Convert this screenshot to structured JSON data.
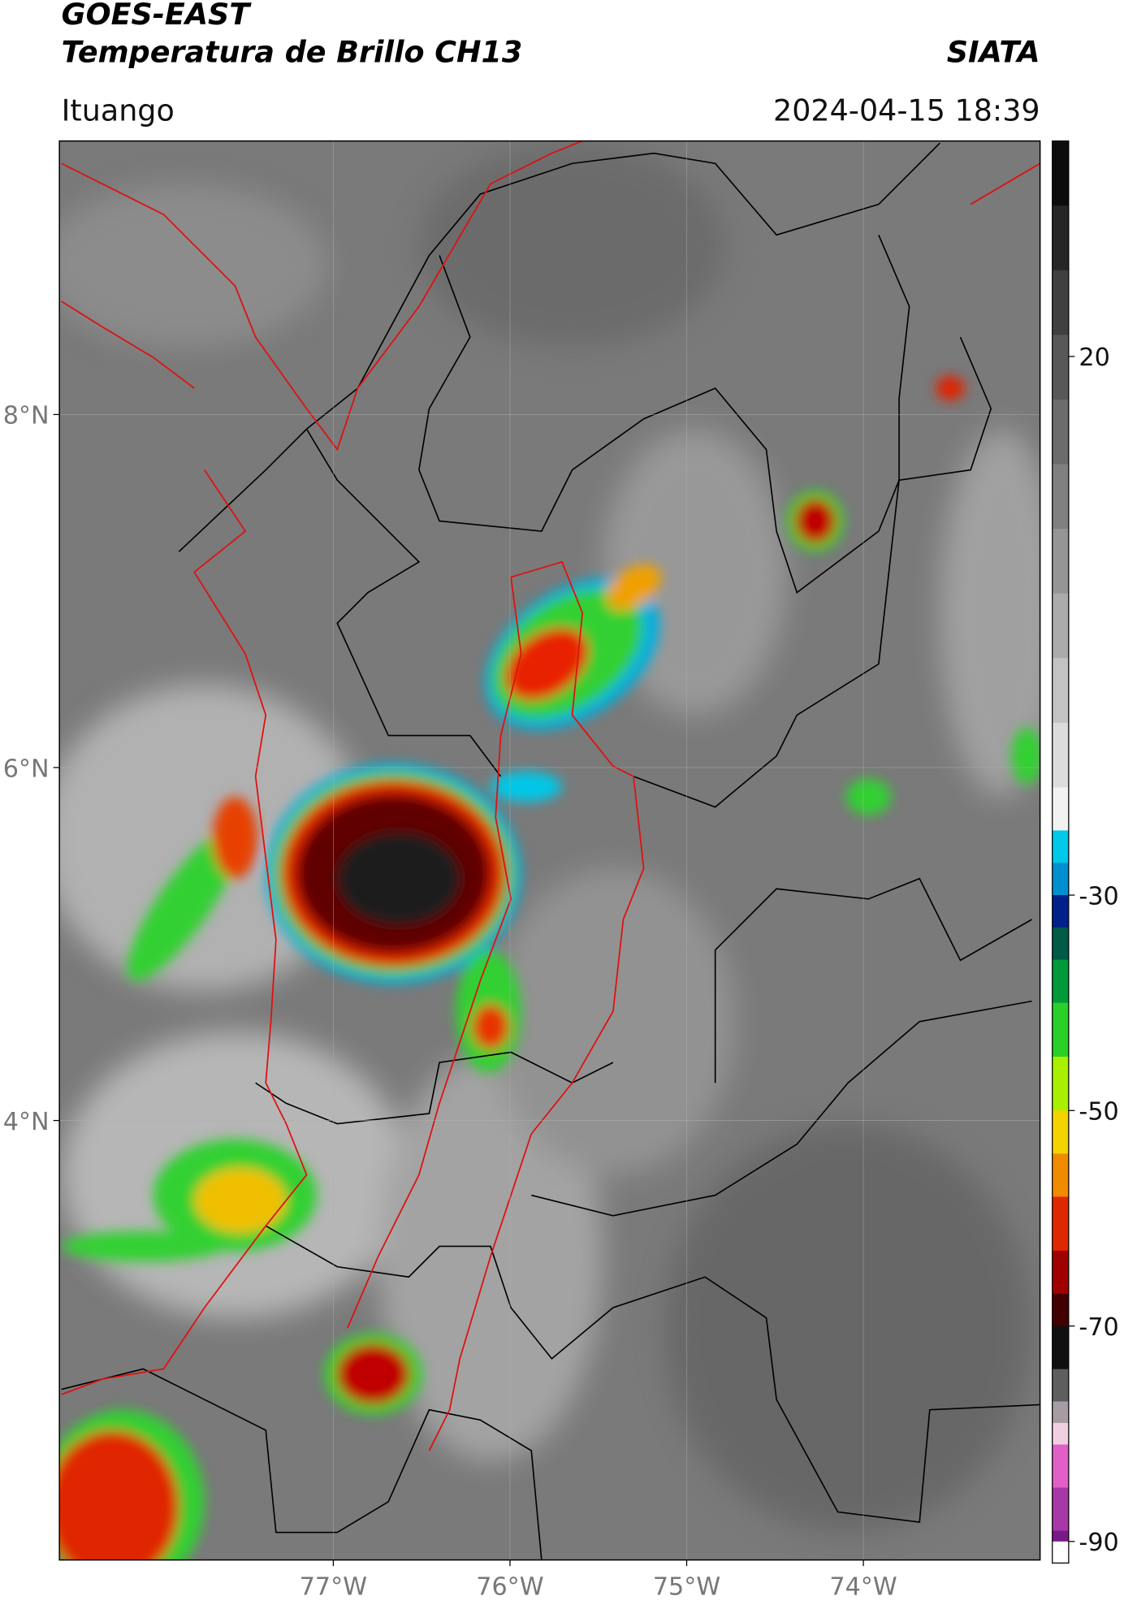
{
  "header": {
    "title": "GOES-EAST",
    "subtitle": "Temperatura de Brillo CH13",
    "source": "SIATA",
    "location": "Ituango",
    "datetime": "2024-04-15 18:39"
  },
  "map": {
    "xlim": [
      -78.55,
      -73.0
    ],
    "ylim": [
      1.51,
      9.55
    ],
    "xticks": [
      {
        "value": -77,
        "label": "77°W"
      },
      {
        "value": -76,
        "label": "76°W"
      },
      {
        "value": -75,
        "label": "75°W"
      },
      {
        "value": -74,
        "label": "74°W"
      }
    ],
    "yticks": [
      {
        "value": 8,
        "label": "8°N"
      },
      {
        "value": 6,
        "label": "6°N"
      },
      {
        "value": 4,
        "label": "4°N"
      }
    ],
    "grid": true
  },
  "colorbar": {
    "lim": [
      -92,
      40
    ],
    "ticks": [
      20,
      -30,
      -50,
      -70,
      -90
    ],
    "bands": [
      {
        "value": 40,
        "color": "#0c0c0c"
      },
      {
        "value": 34,
        "color": "#262626"
      },
      {
        "value": 28,
        "color": "#404040"
      },
      {
        "value": 22,
        "color": "#585858"
      },
      {
        "value": 16,
        "color": "#6c6c6c"
      },
      {
        "value": 10,
        "color": "#808080"
      },
      {
        "value": 4,
        "color": "#959595"
      },
      {
        "value": -2,
        "color": "#ababab"
      },
      {
        "value": -8,
        "color": "#c3c3c3"
      },
      {
        "value": -14,
        "color": "#dcdcdc"
      },
      {
        "value": -20,
        "color": "#f2f2f2"
      },
      {
        "value": -24,
        "color": "#00c8e8"
      },
      {
        "value": -27,
        "color": "#0090d0"
      },
      {
        "value": -30,
        "color": "#00208a"
      },
      {
        "value": -33,
        "color": "#005a46"
      },
      {
        "value": -36,
        "color": "#009a3a"
      },
      {
        "value": -40,
        "color": "#28d028"
      },
      {
        "value": -45,
        "color": "#a8f000"
      },
      {
        "value": -50,
        "color": "#f4d400"
      },
      {
        "value": -54,
        "color": "#f08a00"
      },
      {
        "value": -58,
        "color": "#e02800"
      },
      {
        "value": -63,
        "color": "#a00000"
      },
      {
        "value": -67,
        "color": "#420000"
      },
      {
        "value": -70,
        "color": "#101010"
      },
      {
        "value": -74,
        "color": "#5e5e5e"
      },
      {
        "value": -77,
        "color": "#a89ca4"
      },
      {
        "value": -79,
        "color": "#f0d0e0"
      },
      {
        "value": -81,
        "color": "#e060c8"
      },
      {
        "value": -85,
        "color": "#a838a8"
      },
      {
        "value": -89,
        "color": "#7a1a8a"
      },
      {
        "value": -90,
        "color": "#ffffff"
      }
    ]
  }
}
